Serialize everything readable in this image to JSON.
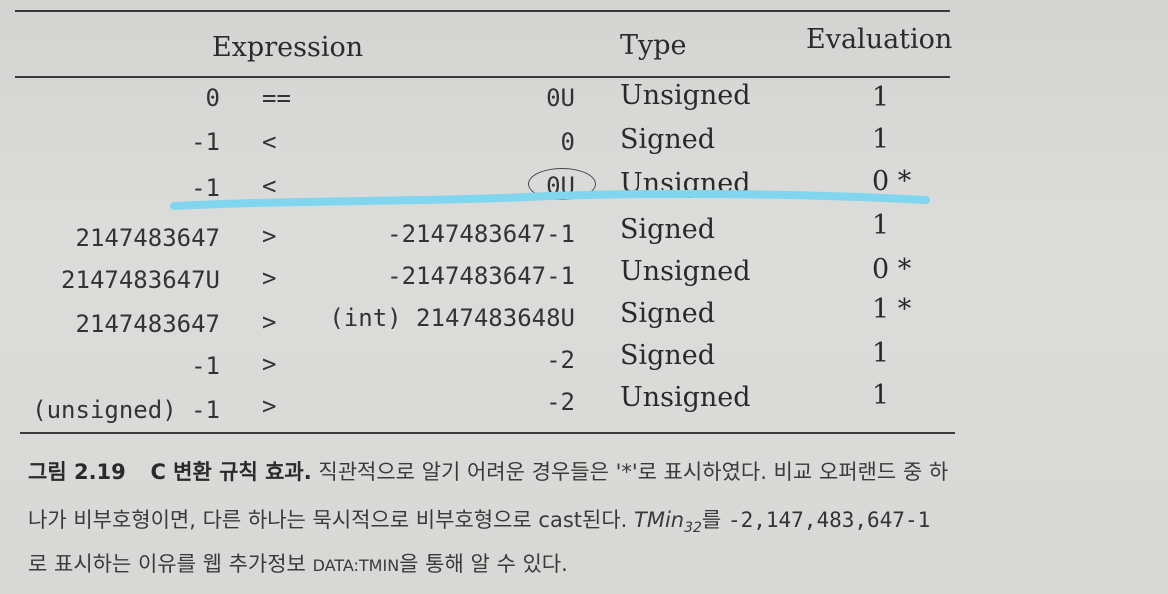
{
  "table": {
    "headers": {
      "expression": "Expression",
      "type": "Type",
      "evaluation": "Evaluation"
    },
    "rows": [
      {
        "left": "0",
        "op": "==",
        "right": "0U",
        "type": "Unsigned",
        "eval": "1"
      },
      {
        "left": "-1",
        "op": "<",
        "right": "0",
        "type": "Signed",
        "eval": "1"
      },
      {
        "left": "-1",
        "op": "<",
        "right": "0U",
        "type": "Unsigned",
        "eval": "0 *"
      },
      {
        "left": "2147483647",
        "op": ">",
        "right": "-2147483647-1",
        "type": "Signed",
        "eval": "1"
      },
      {
        "left": "2147483647U",
        "op": ">",
        "right": "-2147483647-1",
        "type": "Unsigned",
        "eval": "0 *"
      },
      {
        "left": "2147483647",
        "op": ">",
        "right": "(int) 2147483648U",
        "type": "Signed",
        "eval": "1 *"
      },
      {
        "left": "-1",
        "op": ">",
        "right": "-2",
        "type": "Signed",
        "eval": "1"
      },
      {
        "left": "(unsigned) -1",
        "op": ">",
        "right": "-2",
        "type": "Unsigned",
        "eval": "1"
      }
    ]
  },
  "caption": {
    "label": "그림 2.19",
    "title": "C 변환 규칙 효과.",
    "line1_text": "직관적으로 알기 어려운 경우들은 '*'로 표시하였다. 비교 오퍼랜드 중 하",
    "line2_a": "나가 비부호형이면, 다른 하나는 묵시적으로 비부호형으로 cast된다.",
    "line2_tmin": "TMin",
    "line2_sub": "32",
    "line2_b": "를",
    "line2_value": "-2,147,483,647-1",
    "line3_a": "로 표시하는 이유를 웹 추가정보",
    "line3_ref": "DATA:TMIN",
    "line3_b": "을 통해 알 수 있다."
  },
  "colors": {
    "highlight": "#7fd6ee",
    "ink": "#2a2a2a",
    "paper": "#d8d8d6"
  }
}
